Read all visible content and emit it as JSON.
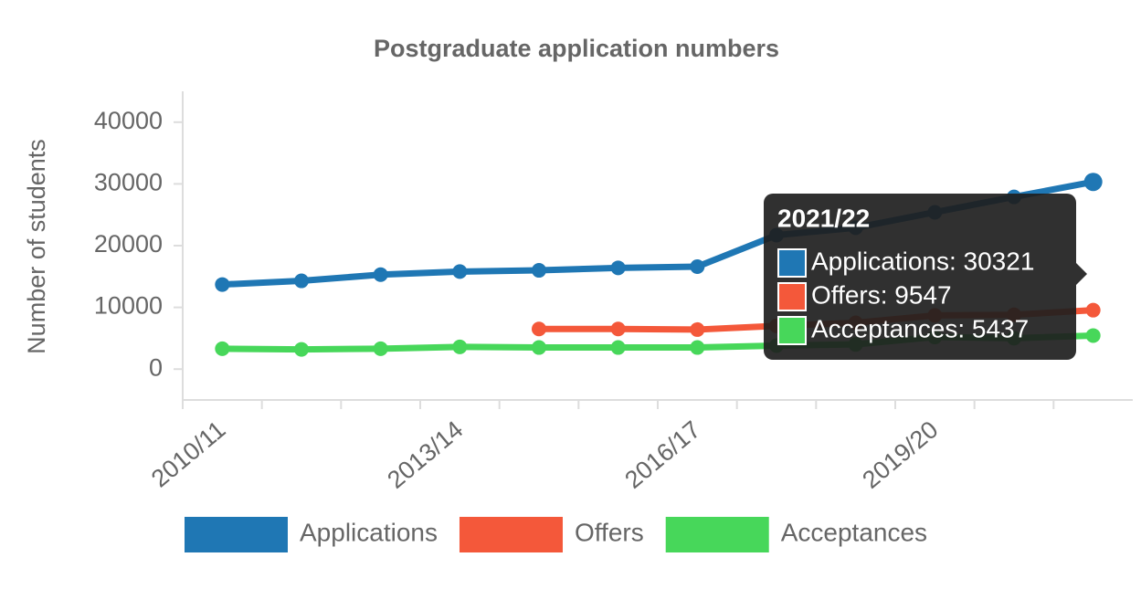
{
  "chart_data": {
    "type": "line",
    "title": "Postgraduate application numbers",
    "y_label": "Number of students",
    "categories": [
      "2010/11",
      null,
      null,
      "2013/14",
      null,
      null,
      "2016/17",
      null,
      null,
      "2019/20",
      null,
      null
    ],
    "series": [
      {
        "name": "Applications",
        "color": "#1f77b4",
        "values": [
          13700,
          14300,
          15300,
          15800,
          16000,
          16400,
          16600,
          21700,
          22900,
          25400,
          27900,
          30321
        ]
      },
      {
        "name": "Offers",
        "color": "#f4583a",
        "values": [
          null,
          null,
          null,
          null,
          6500,
          6500,
          6400,
          7000,
          7500,
          8700,
          8800,
          9547
        ]
      },
      {
        "name": "Acceptances",
        "color": "#47d75a",
        "values": [
          3300,
          3200,
          3300,
          3600,
          3500,
          3500,
          3500,
          3800,
          4000,
          5200,
          5000,
          5437
        ]
      }
    ],
    "ylim": [
      -5000,
      45000
    ],
    "yticks": [
      0,
      10000,
      20000,
      30000,
      40000
    ],
    "tooltip": {
      "title": "2021/22",
      "lines": [
        "Applications: 30321",
        "Offers: 9547",
        "Acceptances: 5437"
      ]
    }
  }
}
